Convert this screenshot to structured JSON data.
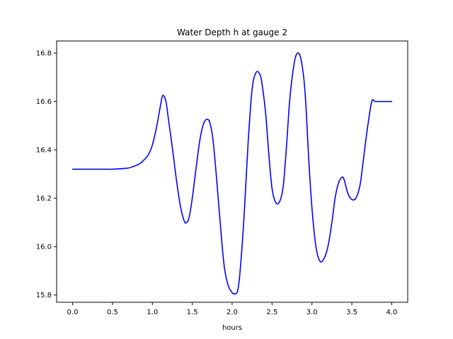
{
  "chart_data": {
    "type": "line",
    "title": "Water Depth h at gauge 2",
    "xlabel": "hours",
    "ylabel": "",
    "xlim": [
      -0.2,
      4.2
    ],
    "ylim": [
      15.77,
      16.85
    ],
    "xticks": [
      0.0,
      0.5,
      1.0,
      1.5,
      2.0,
      2.5,
      3.0,
      3.5,
      4.0
    ],
    "xtick_labels": [
      "0.0",
      "0.5",
      "1.0",
      "1.5",
      "2.0",
      "2.5",
      "3.0",
      "3.5",
      "4.0"
    ],
    "yticks": [
      15.8,
      16.0,
      16.2,
      16.4,
      16.6,
      16.8
    ],
    "ytick_labels": [
      "15.8",
      "16.0",
      "16.2",
      "16.4",
      "16.6",
      "16.8"
    ],
    "grid": false,
    "series": [
      {
        "color": "#0000ff",
        "x": [
          0.0,
          0.1,
          0.2,
          0.3,
          0.4,
          0.5,
          0.6,
          0.7,
          0.75,
          0.8,
          0.85,
          0.9,
          0.95,
          1.0,
          1.05,
          1.1,
          1.13,
          1.17,
          1.2,
          1.25,
          1.3,
          1.35,
          1.4,
          1.43,
          1.46,
          1.5,
          1.55,
          1.6,
          1.65,
          1.7,
          1.73,
          1.76,
          1.8,
          1.85,
          1.9,
          1.95,
          2.0,
          2.04,
          2.07,
          2.1,
          2.15,
          2.2,
          2.25,
          2.3,
          2.35,
          2.38,
          2.42,
          2.46,
          2.5,
          2.55,
          2.6,
          2.64,
          2.68,
          2.72,
          2.76,
          2.8,
          2.85,
          2.9,
          2.93,
          2.96,
          3.0,
          3.05,
          3.1,
          3.15,
          3.2,
          3.25,
          3.29,
          3.33,
          3.37,
          3.4,
          3.45,
          3.5,
          3.55,
          3.6,
          3.63,
          3.66,
          3.7,
          3.75,
          3.79,
          3.83,
          3.87,
          3.9,
          3.95,
          4.0
        ],
        "y": [
          16.32,
          16.32,
          16.32,
          16.32,
          16.32,
          16.32,
          16.322,
          16.325,
          16.33,
          16.336,
          16.345,
          16.36,
          16.38,
          16.42,
          16.49,
          16.58,
          16.625,
          16.6,
          16.53,
          16.41,
          16.28,
          16.17,
          16.105,
          16.1,
          16.12,
          16.2,
          16.33,
          16.45,
          16.515,
          16.525,
          16.5,
          16.44,
          16.3,
          16.1,
          15.92,
          15.84,
          15.81,
          15.805,
          15.82,
          15.9,
          16.13,
          16.43,
          16.65,
          16.72,
          16.71,
          16.66,
          16.55,
          16.38,
          16.24,
          16.18,
          16.19,
          16.25,
          16.41,
          16.6,
          16.72,
          16.79,
          16.79,
          16.69,
          16.55,
          16.36,
          16.16,
          16.0,
          15.94,
          15.95,
          16.0,
          16.1,
          16.2,
          16.26,
          16.285,
          16.28,
          16.22,
          16.195,
          16.2,
          16.25,
          16.32,
          16.4,
          16.5,
          16.6,
          16.6,
          16.6,
          16.6,
          16.6,
          16.6,
          16.6
        ]
      }
    ]
  }
}
